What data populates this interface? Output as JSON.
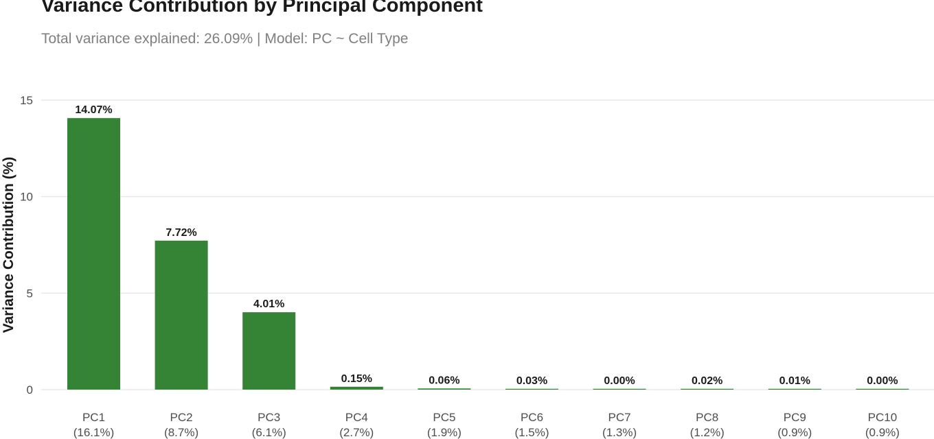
{
  "chart_data": {
    "type": "bar",
    "title": "Variance Contribution by Principal Component",
    "subtitle": "Total variance explained: 26.09% | Model: PC ~ Cell Type",
    "xlabel": "",
    "ylabel": "Variance Contribution (%)",
    "ylim": [
      0,
      15
    ],
    "yticks": [
      0,
      5,
      10,
      15
    ],
    "grid": true,
    "legend": "none",
    "bar_color": "#358334",
    "categories": [
      "PC1",
      "PC2",
      "PC3",
      "PC4",
      "PC5",
      "PC6",
      "PC7",
      "PC8",
      "PC9",
      "PC10"
    ],
    "category_sublabels": [
      "(16.1%)",
      "(8.7%)",
      "(6.1%)",
      "(2.7%)",
      "(1.9%)",
      "(1.5%)",
      "(1.3%)",
      "(1.2%)",
      "(0.9%)",
      "(0.9%)"
    ],
    "values": [
      14.07,
      7.72,
      4.01,
      0.15,
      0.06,
      0.03,
      0.0,
      0.02,
      0.01,
      0.0
    ],
    "data_labels": [
      "14.07%",
      "7.72%",
      "4.01%",
      "0.15%",
      "0.06%",
      "0.03%",
      "0.00%",
      "0.02%",
      "0.01%",
      "0.00%"
    ]
  }
}
